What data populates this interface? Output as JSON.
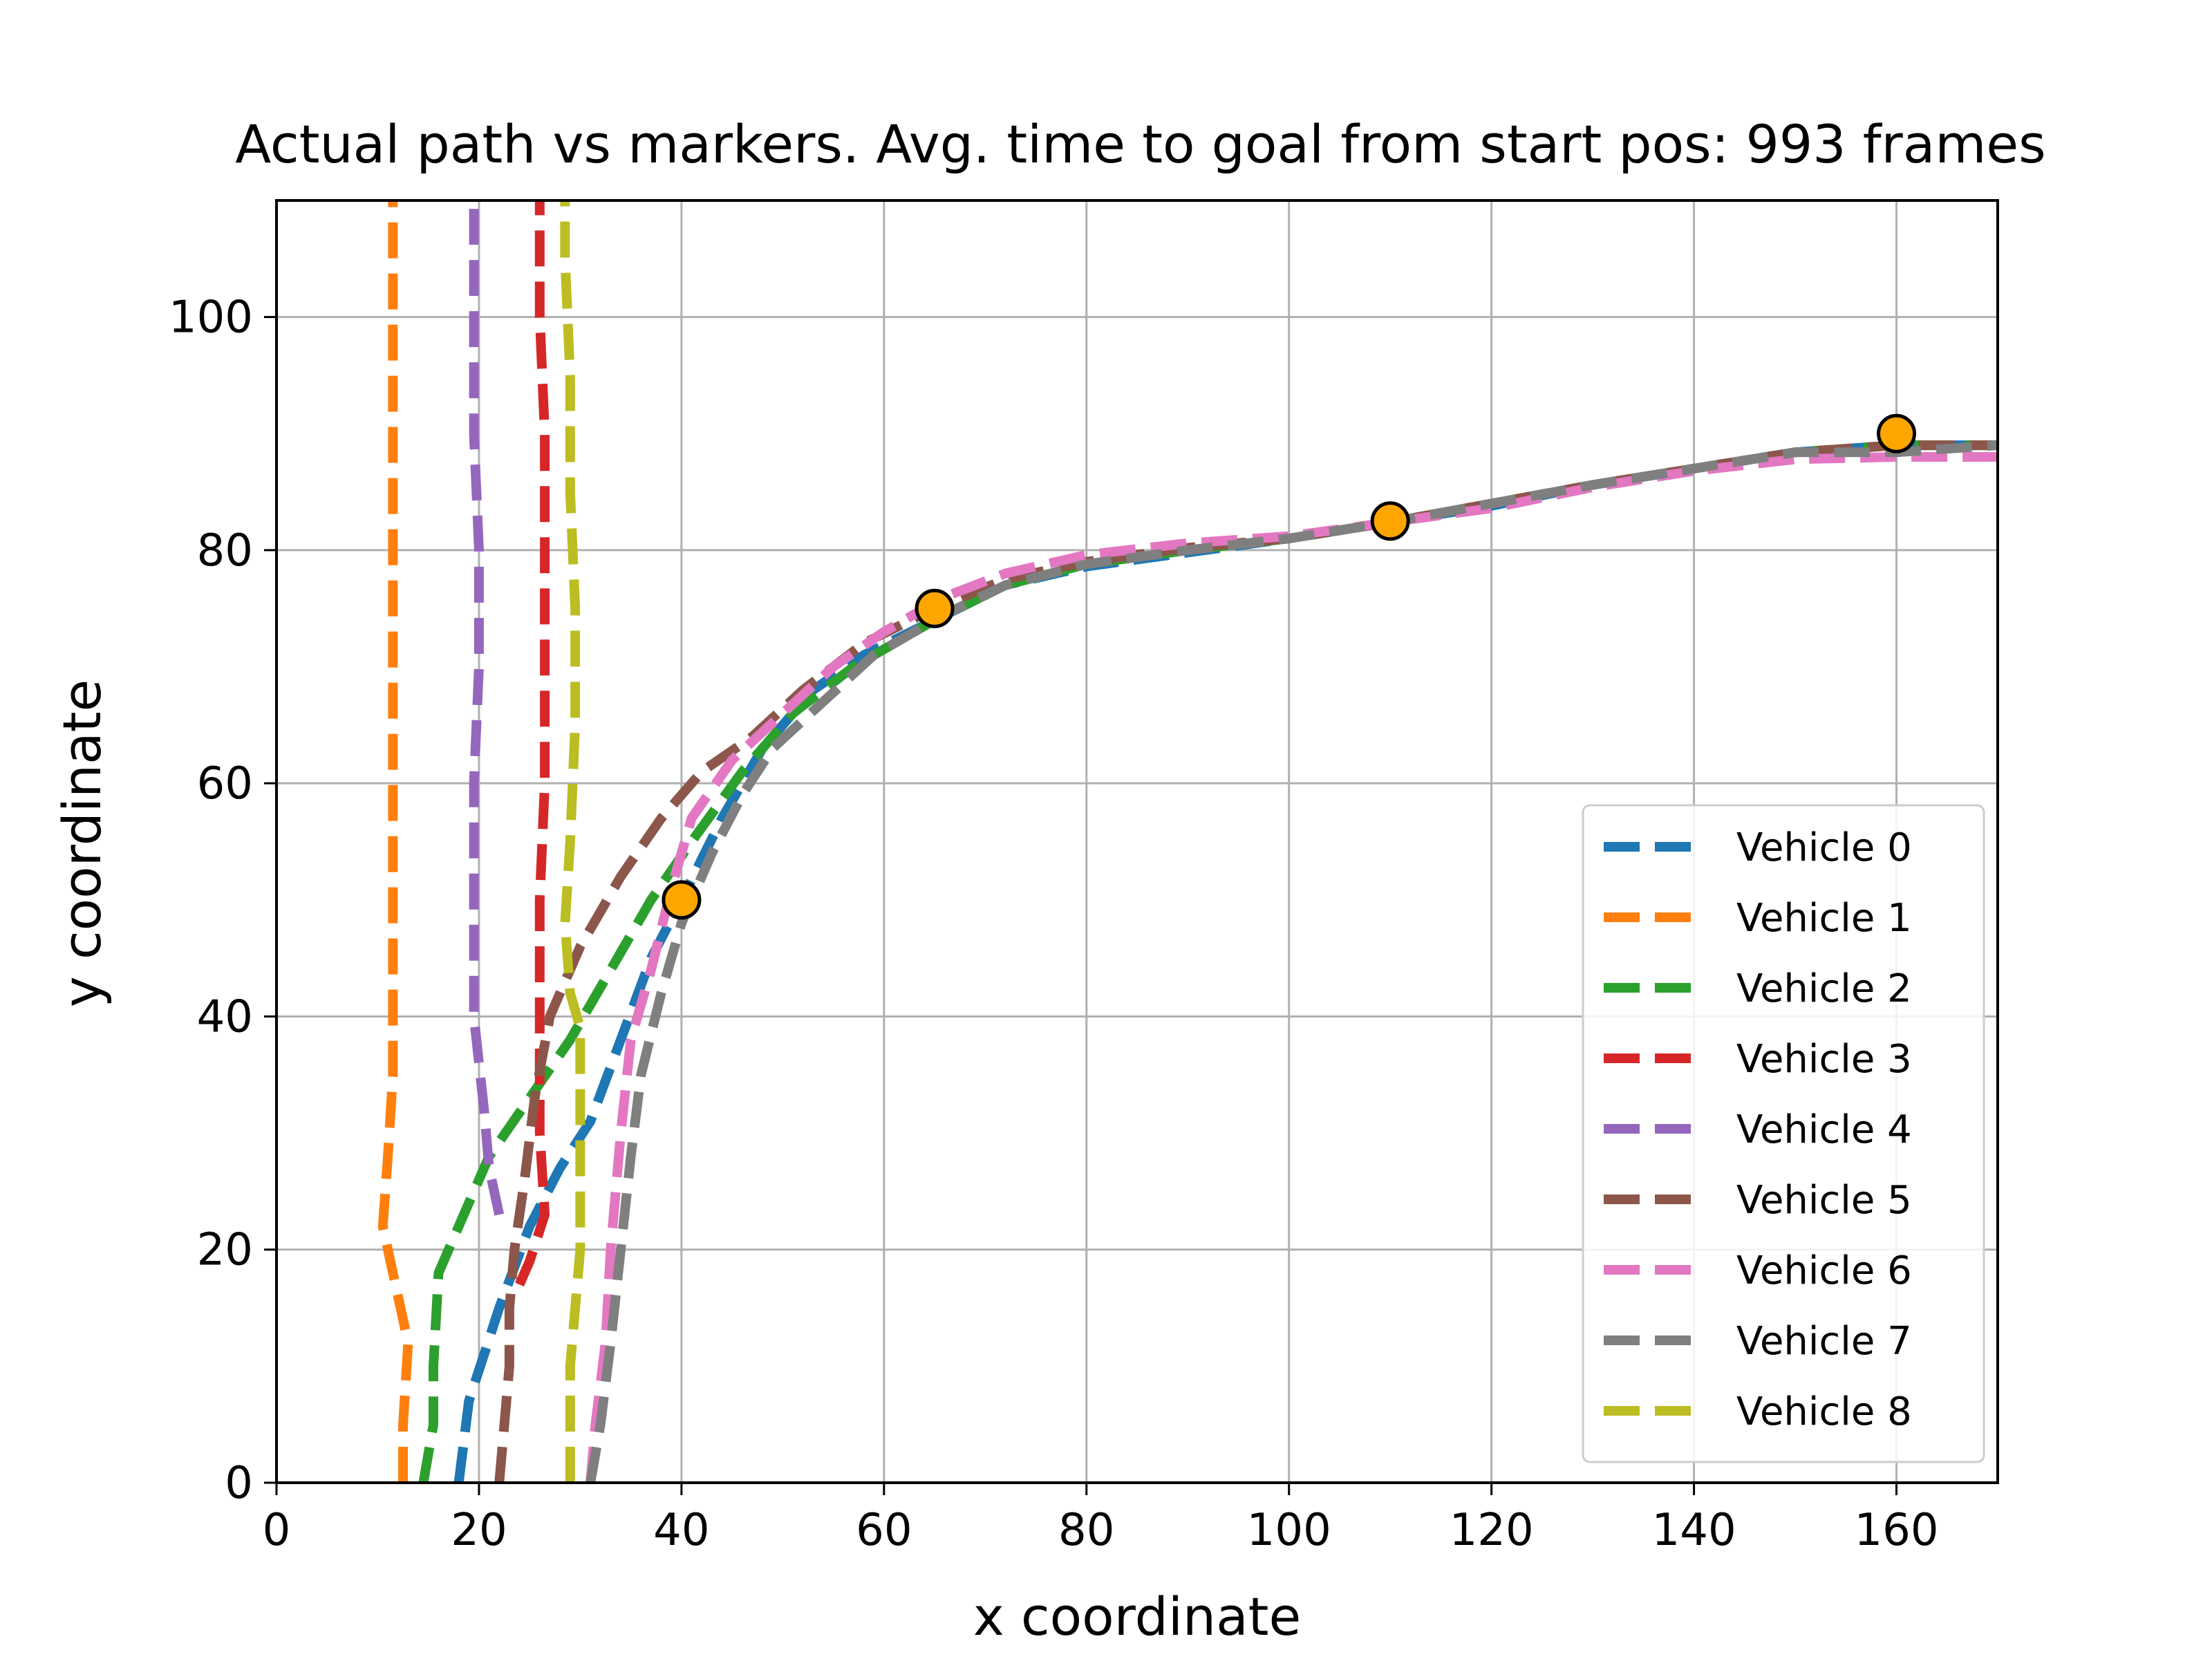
{
  "chart_data": {
    "type": "line",
    "title": "Actual path vs markers. Avg. time to goal from start pos: 993 frames",
    "xlabel": "x coordinate",
    "ylabel": "y coordinate",
    "xlim": [
      0,
      170
    ],
    "ylim": [
      0,
      110
    ],
    "xticks": [
      0,
      20,
      40,
      60,
      80,
      100,
      120,
      140,
      160
    ],
    "yticks": [
      0,
      20,
      40,
      60,
      80,
      100
    ],
    "grid": true,
    "legend_position": "lower-right",
    "series": [
      {
        "name": "Vehicle 0",
        "color": "#1f77b4",
        "style": "dashed",
        "points": [
          [
            18,
            0
          ],
          [
            19,
            7
          ],
          [
            22,
            15
          ],
          [
            25,
            22
          ],
          [
            28,
            27
          ],
          [
            31,
            31
          ],
          [
            34,
            38
          ],
          [
            37,
            45
          ],
          [
            40,
            50
          ],
          [
            44,
            57
          ],
          [
            48,
            63
          ],
          [
            53,
            68
          ],
          [
            58,
            71
          ],
          [
            65,
            74
          ],
          [
            72,
            77
          ],
          [
            80,
            78.6
          ],
          [
            90,
            79.8
          ],
          [
            100,
            81
          ],
          [
            110,
            82.4
          ],
          [
            120,
            83.8
          ],
          [
            130,
            85.6
          ],
          [
            140,
            87
          ],
          [
            150,
            88.4
          ],
          [
            160,
            89
          ],
          [
            170,
            89
          ]
        ]
      },
      {
        "name": "Vehicle 1",
        "color": "#ff7f0e",
        "style": "dashed",
        "points": [
          [
            12.5,
            0
          ],
          [
            12.5,
            5
          ],
          [
            13,
            12
          ],
          [
            11.5,
            18
          ],
          [
            10.5,
            22
          ],
          [
            11,
            28
          ],
          [
            11.5,
            35
          ],
          [
            11.5,
            50
          ],
          [
            11.5,
            70
          ],
          [
            11.5,
            90
          ],
          [
            11.5,
            110
          ]
        ]
      },
      {
        "name": "Vehicle 2",
        "color": "#2ca02c",
        "style": "dashed",
        "points": [
          [
            14.5,
            0
          ],
          [
            15.5,
            5
          ],
          [
            15.5,
            10
          ],
          [
            16,
            18
          ],
          [
            18,
            22
          ],
          [
            21,
            28
          ],
          [
            25,
            33
          ],
          [
            29,
            38
          ],
          [
            33,
            44
          ],
          [
            37,
            50
          ],
          [
            41,
            55
          ],
          [
            46,
            61
          ],
          [
            51,
            66
          ],
          [
            57,
            70
          ],
          [
            65,
            74
          ],
          [
            72,
            77
          ],
          [
            80,
            78.8
          ],
          [
            90,
            80
          ],
          [
            100,
            81
          ],
          [
            110,
            82.4
          ],
          [
            120,
            84
          ],
          [
            130,
            85.6
          ],
          [
            140,
            87
          ],
          [
            150,
            88.4
          ],
          [
            160,
            89
          ],
          [
            170,
            89
          ]
        ]
      },
      {
        "name": "Vehicle 3",
        "color": "#d62728",
        "style": "dashed",
        "points": [
          [
            24,
            17
          ],
          [
            25,
            19
          ],
          [
            26.5,
            23
          ],
          [
            26,
            30
          ],
          [
            26,
            40
          ],
          [
            26,
            50
          ],
          [
            26.5,
            60
          ],
          [
            26.5,
            70
          ],
          [
            26.5,
            80
          ],
          [
            26.5,
            90
          ],
          [
            26,
            100
          ],
          [
            26,
            110
          ]
        ]
      },
      {
        "name": "Vehicle 4",
        "color": "#9467bd",
        "style": "dashed",
        "points": [
          [
            22,
            23
          ],
          [
            21,
            27
          ],
          [
            20.5,
            32
          ],
          [
            20,
            36
          ],
          [
            19.5,
            40
          ],
          [
            19.5,
            50
          ],
          [
            19.5,
            60
          ],
          [
            20,
            70
          ],
          [
            20,
            80
          ],
          [
            19.5,
            90
          ],
          [
            19.5,
            100
          ],
          [
            19.5,
            110
          ]
        ]
      },
      {
        "name": "Vehicle 5",
        "color": "#8c564b",
        "style": "dashed",
        "points": [
          [
            22,
            0
          ],
          [
            22.5,
            5
          ],
          [
            23,
            10
          ],
          [
            23,
            15
          ],
          [
            23.5,
            20
          ],
          [
            24.5,
            26
          ],
          [
            25.5,
            33
          ],
          [
            27,
            40
          ],
          [
            30,
            46
          ],
          [
            34,
            52
          ],
          [
            38,
            57
          ],
          [
            42,
            61
          ],
          [
            47,
            64
          ],
          [
            52,
            68
          ],
          [
            58,
            72
          ],
          [
            65,
            75
          ],
          [
            72,
            77.5
          ],
          [
            80,
            79
          ],
          [
            90,
            80.2
          ],
          [
            100,
            81
          ],
          [
            110,
            82.4
          ],
          [
            120,
            84
          ],
          [
            130,
            85.6
          ],
          [
            140,
            87
          ],
          [
            150,
            88.4
          ],
          [
            160,
            89
          ],
          [
            170,
            89
          ]
        ]
      },
      {
        "name": "Vehicle 6",
        "color": "#e377c2",
        "style": "dashed",
        "points": [
          [
            31,
            0
          ],
          [
            31.5,
            5
          ],
          [
            32.5,
            12
          ],
          [
            33,
            20
          ],
          [
            34,
            30
          ],
          [
            35,
            38
          ],
          [
            37,
            44
          ],
          [
            39,
            51
          ],
          [
            41,
            57
          ],
          [
            45,
            62
          ],
          [
            50,
            66
          ],
          [
            55,
            70
          ],
          [
            60,
            73
          ],
          [
            66,
            76
          ],
          [
            72,
            78
          ],
          [
            80,
            79.6
          ],
          [
            90,
            80.6
          ],
          [
            100,
            81.2
          ],
          [
            110,
            82.4
          ],
          [
            120,
            83.6
          ],
          [
            130,
            85.4
          ],
          [
            140,
            86.8
          ],
          [
            150,
            87.8
          ],
          [
            160,
            88
          ],
          [
            170,
            88
          ]
        ]
      },
      {
        "name": "Vehicle 7",
        "color": "#7f7f7f",
        "style": "dashed",
        "points": [
          [
            31,
            0
          ],
          [
            32,
            5
          ],
          [
            33,
            12
          ],
          [
            34,
            20
          ],
          [
            35,
            28
          ],
          [
            36,
            35
          ],
          [
            38,
            42
          ],
          [
            40,
            48
          ],
          [
            43,
            54
          ],
          [
            46,
            59
          ],
          [
            49,
            63
          ],
          [
            54,
            67
          ],
          [
            59,
            71
          ],
          [
            66,
            74.5
          ],
          [
            72,
            77
          ],
          [
            80,
            78.8
          ],
          [
            90,
            80
          ],
          [
            100,
            81
          ],
          [
            110,
            82.4
          ],
          [
            120,
            84
          ],
          [
            130,
            85.6
          ],
          [
            140,
            87
          ],
          [
            150,
            88.4
          ],
          [
            160,
            88.4
          ],
          [
            170,
            89
          ]
        ]
      },
      {
        "name": "Vehicle 8",
        "color": "#bcbd22",
        "style": "dashed",
        "points": [
          [
            29,
            0
          ],
          [
            29,
            5
          ],
          [
            29,
            10
          ],
          [
            29.5,
            15
          ],
          [
            30,
            20
          ],
          [
            30,
            28
          ],
          [
            30,
            35
          ],
          [
            30,
            39
          ],
          [
            29,
            42
          ],
          [
            28.5,
            48
          ],
          [
            29,
            55
          ],
          [
            29.5,
            65
          ],
          [
            29.5,
            75
          ],
          [
            29,
            85
          ],
          [
            29,
            95
          ],
          [
            28.5,
            105
          ],
          [
            28.5,
            110
          ]
        ]
      }
    ],
    "markers": {
      "name": "markers",
      "color": "#ffa500",
      "points": [
        [
          40,
          50
        ],
        [
          65,
          75
        ],
        [
          110,
          82.5
        ],
        [
          160,
          90
        ]
      ]
    }
  }
}
